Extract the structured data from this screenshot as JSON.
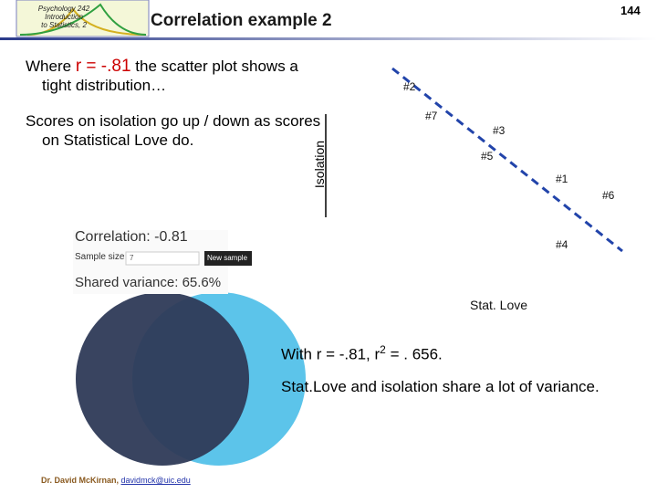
{
  "header": {
    "logo": [
      "Psychology 242",
      "Introduction",
      "to Statistics, 2"
    ],
    "title": "Correlation example 2",
    "page_number": "144"
  },
  "bullets": [
    {
      "prefix": "Where",
      "highlight": "r = -.81",
      "rest": "the scatter plot shows a tight distribution…"
    },
    {
      "text": "Scores on isolation go up / down as scores on Statistical Love do."
    }
  ],
  "scatter": {
    "y_label": "Isolation",
    "x_label": "Stat. Love",
    "points": [
      "#2",
      "#7",
      "#3",
      "#5",
      "#1",
      "#6",
      "#4"
    ]
  },
  "app": {
    "correlation": "Correlation: -0.81",
    "sample_size_label": "Sample size",
    "sample_size": "7",
    "button": "New sample",
    "shared": "Shared variance: 65.6%"
  },
  "summary": {
    "prefix": "With r = -.81, r",
    "superscript": "2",
    "suffix": "= . 656.",
    "text": "Stat.Love and isolation share a lot of variance."
  },
  "footer": {
    "author": "Dr. David McKirnan,",
    "email": "davidmck@uic.edu"
  }
}
